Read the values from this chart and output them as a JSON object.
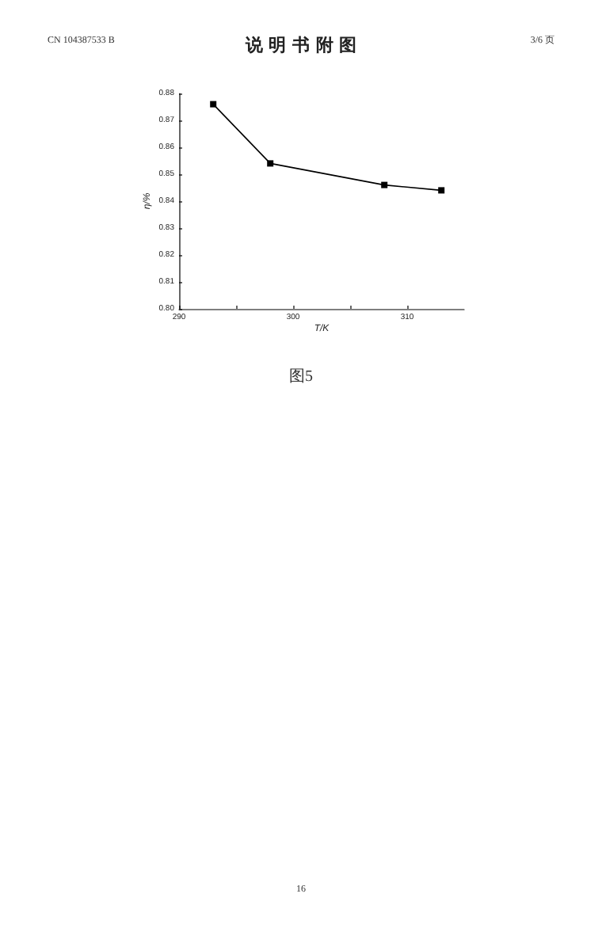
{
  "chart_data": {
    "type": "line",
    "title": "说 明 书 附 图",
    "annotations": [
      "CN 104387533 B",
      "3/6 页",
      "图5",
      "16"
    ],
    "xlabel": "T/K",
    "ylabel": "η/%",
    "x": [
      293,
      298,
      308,
      313
    ],
    "series": [
      {
        "color": "#000000",
        "values": [
          0.876,
          0.854,
          0.846,
          0.844
        ]
      }
    ],
    "xlim": [
      290,
      315
    ],
    "xticks": [
      290,
      {
        "value": 295,
        "label": null
      },
      300,
      {
        "value": 305,
        "label": null
      },
      310
    ],
    "ylim": [
      0.8,
      0.88
    ],
    "yticks": [
      {
        "value": 0.8,
        "label": "0.80"
      },
      {
        "value": 0.81,
        "label": "0.81"
      },
      {
        "value": 0.82,
        "label": "0.82"
      },
      {
        "value": 0.83,
        "label": "0.83"
      },
      {
        "value": 0.84,
        "label": "0.84"
      },
      {
        "value": 0.85,
        "label": "0.85"
      },
      {
        "value": 0.86,
        "label": "0.86"
      },
      {
        "value": 0.87,
        "label": "0.87"
      },
      {
        "value": 0.88,
        "label": "0.88"
      }
    ],
    "grid": false,
    "marker": "square",
    "line_style": "solid"
  }
}
